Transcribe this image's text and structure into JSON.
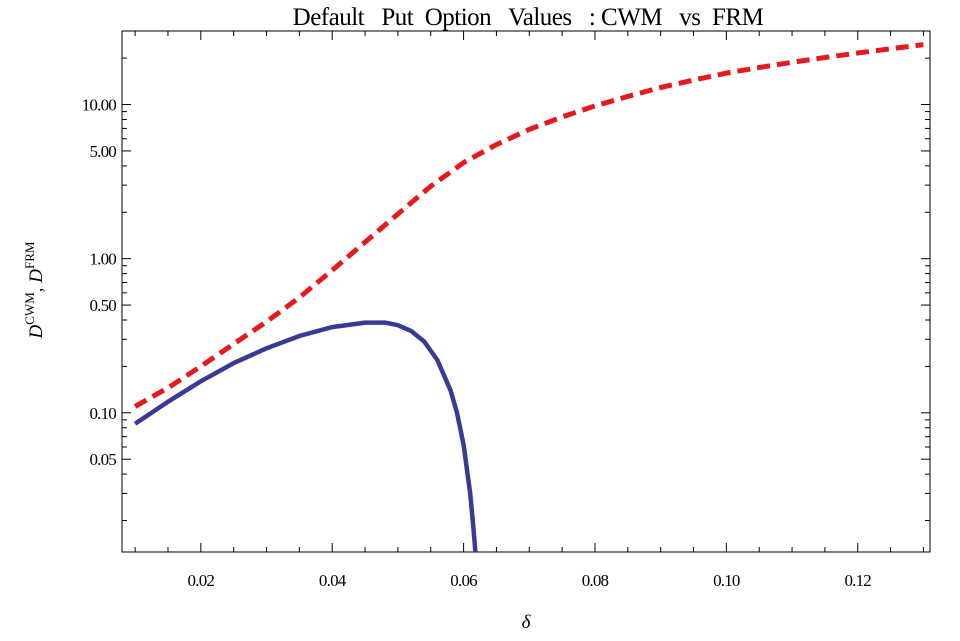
{
  "chart_data": {
    "type": "line",
    "title": "Default   Put  Option   Values   : CWM   vs  FRM",
    "xlabel": "δ",
    "ylabel": {
      "base1": "D",
      "sup1": "CWM",
      "sep": ", ",
      "base2": "D",
      "sup2": "FRM"
    },
    "x_scale": "linear",
    "y_scale": "log",
    "xlim": [
      0.008,
      0.131
    ],
    "ylim": [
      0.0125,
      30
    ],
    "x_ticks": [
      {
        "value": 0.02,
        "label": "0.02"
      },
      {
        "value": 0.04,
        "label": "0.04"
      },
      {
        "value": 0.06,
        "label": "0.06"
      },
      {
        "value": 0.08,
        "label": "0.08"
      },
      {
        "value": 0.1,
        "label": "0.10"
      },
      {
        "value": 0.12,
        "label": "0.12"
      }
    ],
    "y_ticks": [
      {
        "value": 10,
        "label": "10.00"
      },
      {
        "value": 5,
        "label": "5.00"
      },
      {
        "value": 1,
        "label": "1.00"
      },
      {
        "value": 0.5,
        "label": "0.50"
      },
      {
        "value": 0.1,
        "label": "0.10"
      },
      {
        "value": 0.05,
        "label": "0.05"
      }
    ],
    "grid": false,
    "legend": "none",
    "series": [
      {
        "color": "#e41a1c",
        "style": "dashed",
        "points": [
          [
            0.01,
            0.11
          ],
          [
            0.015,
            0.145
          ],
          [
            0.02,
            0.2
          ],
          [
            0.025,
            0.28
          ],
          [
            0.03,
            0.39
          ],
          [
            0.035,
            0.56
          ],
          [
            0.04,
            0.84
          ],
          [
            0.045,
            1.28
          ],
          [
            0.05,
            1.95
          ],
          [
            0.055,
            2.95
          ],
          [
            0.06,
            4.2
          ],
          [
            0.065,
            5.5
          ],
          [
            0.07,
            6.9
          ],
          [
            0.075,
            8.3
          ],
          [
            0.08,
            9.8
          ],
          [
            0.085,
            11.3
          ],
          [
            0.09,
            12.9
          ],
          [
            0.095,
            14.4
          ],
          [
            0.1,
            16.0
          ],
          [
            0.105,
            17.4
          ],
          [
            0.11,
            18.8
          ],
          [
            0.115,
            20.2
          ],
          [
            0.12,
            21.6
          ],
          [
            0.125,
            23.0
          ],
          [
            0.13,
            24.5
          ]
        ]
      },
      {
        "color": "#3a3a96",
        "style": "solid",
        "points": [
          [
            0.01,
            0.085
          ],
          [
            0.015,
            0.118
          ],
          [
            0.02,
            0.16
          ],
          [
            0.025,
            0.21
          ],
          [
            0.03,
            0.262
          ],
          [
            0.035,
            0.315
          ],
          [
            0.04,
            0.36
          ],
          [
            0.045,
            0.385
          ],
          [
            0.048,
            0.385
          ],
          [
            0.05,
            0.37
          ],
          [
            0.052,
            0.34
          ],
          [
            0.054,
            0.29
          ],
          [
            0.056,
            0.22
          ],
          [
            0.058,
            0.14
          ],
          [
            0.059,
            0.1
          ],
          [
            0.06,
            0.062
          ],
          [
            0.061,
            0.03
          ],
          [
            0.0615,
            0.018
          ],
          [
            0.0618,
            0.0125
          ]
        ]
      }
    ]
  }
}
